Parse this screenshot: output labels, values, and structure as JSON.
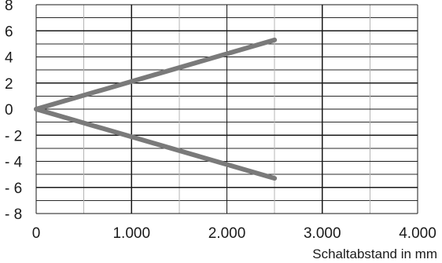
{
  "chart_data": {
    "type": "line",
    "title": "",
    "xlabel": "Schaltabstand in mm",
    "ylabel": "",
    "xlim": [
      0,
      4000
    ],
    "ylim": [
      -8,
      8
    ],
    "x_ticks": [
      {
        "value": 0,
        "label": "0"
      },
      {
        "value": 1000,
        "label": "1.000"
      },
      {
        "value": 2000,
        "label": "2.000"
      },
      {
        "value": 3000,
        "label": "3.000"
      },
      {
        "value": 4000,
        "label": "4.000"
      }
    ],
    "y_ticks": [
      {
        "value": 8,
        "label": "8"
      },
      {
        "value": 6,
        "label": "6"
      },
      {
        "value": 4,
        "label": "4"
      },
      {
        "value": 2,
        "label": "2"
      },
      {
        "value": 0,
        "label": "0"
      },
      {
        "value": -2,
        "label": "- 2"
      },
      {
        "value": -4,
        "label": "- 4"
      },
      {
        "value": -6,
        "label": "- 6"
      },
      {
        "value": -8,
        "label": "- 8"
      }
    ],
    "grid": true,
    "series": [
      {
        "x": [
          0,
          2500
        ],
        "y": [
          0,
          5.3
        ]
      },
      {
        "x": [
          0,
          2500
        ],
        "y": [
          0,
          -5.3
        ]
      }
    ],
    "line_color": "#7a7a7a",
    "grid_color": "#1a1a1a"
  }
}
